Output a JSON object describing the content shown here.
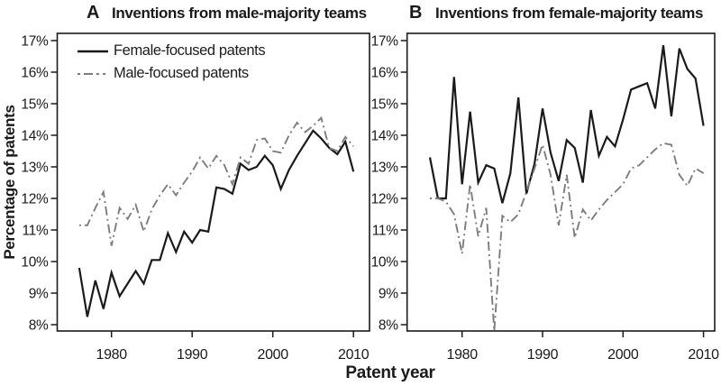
{
  "figure": {
    "panels": [
      {
        "label": "A",
        "title": "Inventions from male-majority teams"
      },
      {
        "label": "B",
        "title": "Inventions from female-majority teams"
      }
    ],
    "legend": {
      "items": [
        {
          "label": "Female-focused patents",
          "line": "solid",
          "color": "#1a1a1a"
        },
        {
          "label": "Male-focused patents",
          "line": "dashdot",
          "color": "#7d7d7d"
        }
      ]
    },
    "ylabel": "Percentage of patents",
    "xlabel": "Patent year",
    "ytick_labels": [
      "17%",
      "16%",
      "15%",
      "14%",
      "13%",
      "12%",
      "11%",
      "10%",
      "9%",
      "8%"
    ],
    "xtick_labels": [
      "1980",
      "1990",
      "2000",
      "2010"
    ],
    "colors": {
      "axis": "#1a1a1a",
      "female_line": "#1a1a1a",
      "male_line": "#7d7d7d",
      "background": "#ffffff"
    }
  },
  "chart_data": [
    {
      "type": "line",
      "panel": "A",
      "title": "Inventions from male-majority teams",
      "xlabel": "Patent year",
      "ylabel": "Percentage of patents",
      "ylim": [
        8,
        17
      ],
      "yticks": [
        8,
        9,
        10,
        11,
        12,
        13,
        14,
        15,
        16,
        17
      ],
      "xticks": [
        1980,
        1990,
        2000,
        2010
      ],
      "grid": false,
      "legend_position": "upper-left",
      "x": [
        1976,
        1977,
        1978,
        1979,
        1980,
        1981,
        1982,
        1983,
        1984,
        1985,
        1986,
        1987,
        1988,
        1989,
        1990,
        1991,
        1992,
        1993,
        1994,
        1995,
        1996,
        1997,
        1998,
        1999,
        2000,
        2001,
        2002,
        2003,
        2004,
        2005,
        2006,
        2007,
        2008,
        2009,
        2010
      ],
      "series": [
        {
          "name": "Female-focused patents",
          "style": "solid",
          "color": "#1a1a1a",
          "values": [
            9.8,
            8.25,
            9.4,
            8.5,
            9.65,
            8.9,
            9.3,
            9.7,
            9.3,
            10.05,
            10.05,
            10.9,
            10.3,
            10.95,
            10.6,
            11.0,
            10.95,
            12.35,
            12.3,
            12.15,
            13.1,
            12.9,
            13.0,
            13.35,
            13.05,
            12.3,
            12.9,
            13.35,
            13.75,
            14.15,
            13.9,
            13.6,
            13.4,
            13.8,
            12.85
          ]
        },
        {
          "name": "Male-focused patents",
          "style": "dashdot",
          "color": "#7d7d7d",
          "values": [
            11.15,
            11.15,
            11.7,
            12.2,
            10.5,
            11.7,
            11.35,
            11.8,
            10.95,
            11.65,
            12.1,
            12.45,
            12.1,
            12.5,
            12.85,
            13.3,
            12.95,
            13.35,
            13.05,
            12.45,
            13.3,
            13.1,
            13.85,
            13.9,
            13.5,
            13.45,
            14.0,
            14.4,
            14.1,
            14.3,
            14.55,
            13.6,
            13.5,
            13.95,
            13.65
          ]
        }
      ]
    },
    {
      "type": "line",
      "panel": "B",
      "title": "Inventions from female-majority teams",
      "xlabel": "Patent year",
      "ylabel": "Percentage of patents",
      "ylim": [
        8,
        17
      ],
      "yticks": [
        8,
        9,
        10,
        11,
        12,
        13,
        14,
        15,
        16,
        17
      ],
      "xticks": [
        1980,
        1990,
        2000,
        2010
      ],
      "grid": false,
      "x": [
        1976,
        1977,
        1978,
        1979,
        1980,
        1981,
        1982,
        1983,
        1984,
        1985,
        1986,
        1987,
        1988,
        1989,
        1990,
        1991,
        1992,
        1993,
        1994,
        1995,
        1996,
        1997,
        1998,
        1999,
        2000,
        2001,
        2002,
        2003,
        2004,
        2005,
        2006,
        2007,
        2008,
        2009,
        2010
      ],
      "series": [
        {
          "name": "Female-focused patents",
          "style": "solid",
          "color": "#1a1a1a",
          "values": [
            13.3,
            12.0,
            12.0,
            15.85,
            12.45,
            14.75,
            12.5,
            13.05,
            12.95,
            11.85,
            12.8,
            15.2,
            12.15,
            13.1,
            14.85,
            13.45,
            12.55,
            13.85,
            13.6,
            12.5,
            14.8,
            13.35,
            13.95,
            13.65,
            14.5,
            15.45,
            15.55,
            15.65,
            14.85,
            16.85,
            14.6,
            16.75,
            16.1,
            15.8,
            14.3
          ]
        },
        {
          "name": "Male-focused patents",
          "style": "dashdot",
          "color": "#7d7d7d",
          "values": [
            12.0,
            12.0,
            11.9,
            11.5,
            10.25,
            12.45,
            10.8,
            11.7,
            7.8,
            11.45,
            11.25,
            11.5,
            12.2,
            12.95,
            13.7,
            12.75,
            11.15,
            12.75,
            10.75,
            11.65,
            11.3,
            11.65,
            11.95,
            12.2,
            12.45,
            12.95,
            13.05,
            13.3,
            13.55,
            13.75,
            13.7,
            12.75,
            12.4,
            12.95,
            12.8
          ]
        }
      ]
    }
  ]
}
